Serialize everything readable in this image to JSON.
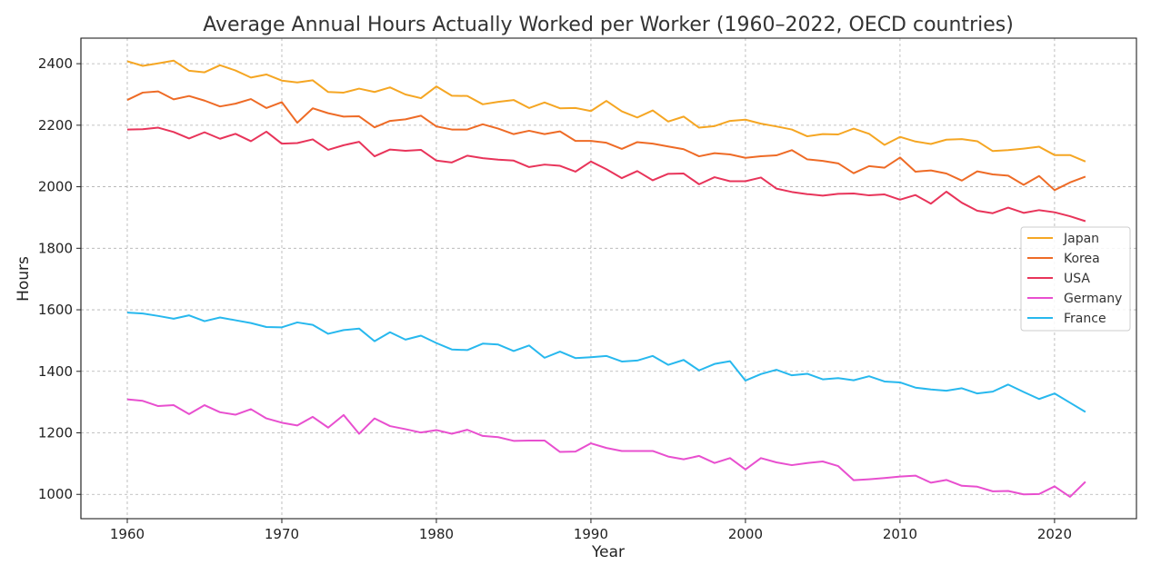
{
  "chart_data": {
    "type": "line",
    "title": "Average Annual Hours Actually Worked per Worker (1960–2022, OECD countries)",
    "xlabel": "Year",
    "ylabel": "Hours",
    "xlim": [
      1957,
      2025.3
    ],
    "ylim": [
      921,
      2483
    ],
    "xticks": [
      1960,
      1970,
      1980,
      1990,
      2000,
      2010,
      2020
    ],
    "yticks": [
      1000,
      1200,
      1400,
      1600,
      1800,
      2000,
      2200,
      2400
    ],
    "grid": true,
    "legend_position": "center-right",
    "x": [
      1960,
      1961,
      1962,
      1963,
      1964,
      1965,
      1966,
      1967,
      1968,
      1969,
      1970,
      1971,
      1972,
      1973,
      1974,
      1975,
      1976,
      1977,
      1978,
      1979,
      1980,
      1981,
      1982,
      1983,
      1984,
      1985,
      1986,
      1987,
      1988,
      1989,
      1990,
      1991,
      1992,
      1993,
      1994,
      1995,
      1996,
      1997,
      1998,
      1999,
      2000,
      2001,
      2002,
      2003,
      2004,
      2005,
      2006,
      2007,
      2008,
      2009,
      2010,
      2011,
      2012,
      2013,
      2014,
      2015,
      2016,
      2017,
      2018,
      2019,
      2020,
      2021,
      2022
    ],
    "series": [
      {
        "name": "Japan",
        "color": "#f5a623",
        "values": [
          2408,
          2393,
          2401,
          2410,
          2377,
          2372,
          2395,
          2378,
          2355,
          2365,
          2345,
          2339,
          2346,
          2308,
          2306,
          2319,
          2308,
          2323,
          2300,
          2288,
          2326,
          2296,
          2295,
          2268,
          2276,
          2282,
          2256,
          2274,
          2255,
          2256,
          2246,
          2279,
          2245,
          2225,
          2248,
          2212,
          2228,
          2192,
          2197,
          2214,
          2218,
          2205,
          2196,
          2186,
          2164,
          2171,
          2170,
          2189,
          2172,
          2136,
          2162,
          2147,
          2139,
          2153,
          2155,
          2148,
          2116,
          2119,
          2124,
          2130,
          2103,
          2103,
          2082
        ]
      },
      {
        "name": "Korea",
        "color": "#ee6b26",
        "values": [
          2282,
          2306,
          2310,
          2284,
          2295,
          2280,
          2261,
          2270,
          2285,
          2256,
          2275,
          2208,
          2255,
          2239,
          2228,
          2229,
          2193,
          2214,
          2219,
          2231,
          2196,
          2186,
          2186,
          2203,
          2189,
          2171,
          2182,
          2171,
          2180,
          2149,
          2149,
          2143,
          2123,
          2145,
          2140,
          2131,
          2122,
          2099,
          2109,
          2105,
          2094,
          2099,
          2102,
          2119,
          2089,
          2084,
          2076,
          2044,
          2067,
          2062,
          2095,
          2049,
          2053,
          2043,
          2020,
          2050,
          2040,
          2036,
          2006,
          2035,
          1989,
          2014,
          2033
        ]
      },
      {
        "name": "USA",
        "color": "#e8345a",
        "values": [
          2186,
          2187,
          2192,
          2178,
          2157,
          2177,
          2156,
          2172,
          2148,
          2179,
          2140,
          2142,
          2154,
          2120,
          2135,
          2146,
          2099,
          2121,
          2117,
          2120,
          2085,
          2079,
          2101,
          2093,
          2088,
          2085,
          2064,
          2072,
          2068,
          2049,
          2082,
          2057,
          2028,
          2051,
          2021,
          2042,
          2043,
          2008,
          2031,
          2018,
          2018,
          2030,
          1994,
          1983,
          1976,
          1971,
          1977,
          1978,
          1972,
          1975,
          1958,
          1973,
          1945,
          1984,
          1948,
          1922,
          1914,
          1932,
          1915,
          1924,
          1917,
          1904,
          1888
        ]
      },
      {
        "name": "Germany",
        "color": "#e84fcf",
        "values": [
          1309,
          1304,
          1287,
          1290,
          1261,
          1290,
          1267,
          1259,
          1277,
          1247,
          1233,
          1224,
          1252,
          1217,
          1258,
          1197,
          1247,
          1222,
          1212,
          1201,
          1209,
          1197,
          1210,
          1190,
          1186,
          1174,
          1175,
          1175,
          1138,
          1139,
          1166,
          1151,
          1141,
          1141,
          1141,
          1123,
          1114,
          1125,
          1102,
          1118,
          1081,
          1118,
          1104,
          1095,
          1102,
          1107,
          1092,
          1046,
          1049,
          1053,
          1058,
          1061,
          1038,
          1047,
          1028,
          1025,
          1010,
          1011,
          1000,
          1001,
          1026,
          992,
          1041
        ]
      },
      {
        "name": "France",
        "color": "#27b8ee",
        "values": [
          1591,
          1588,
          1580,
          1571,
          1582,
          1563,
          1575,
          1566,
          1557,
          1544,
          1543,
          1559,
          1551,
          1522,
          1534,
          1539,
          1498,
          1527,
          1503,
          1516,
          1492,
          1471,
          1469,
          1490,
          1487,
          1466,
          1484,
          1444,
          1464,
          1443,
          1446,
          1450,
          1432,
          1435,
          1450,
          1421,
          1437,
          1403,
          1424,
          1433,
          1370,
          1391,
          1405,
          1387,
          1392,
          1374,
          1378,
          1371,
          1384,
          1367,
          1364,
          1347,
          1341,
          1337,
          1345,
          1328,
          1334,
          1357,
          1333,
          1310,
          1328,
          1298,
          1268
        ]
      }
    ]
  }
}
